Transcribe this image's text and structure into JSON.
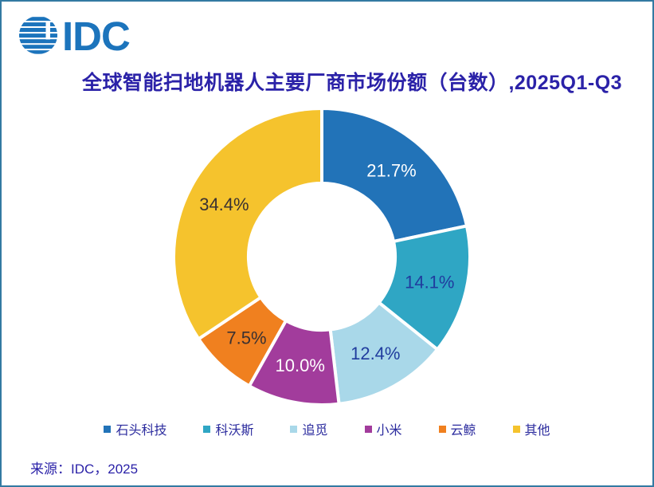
{
  "logo": {
    "text": "IDC",
    "color": "#1C74BC",
    "icon": "striped-globe-icon"
  },
  "title": {
    "text": "全球智能扫地机器人主要厂商市场份额（台数）,2025Q1-Q3",
    "color": "#2B22A8"
  },
  "chart_data": {
    "type": "pie",
    "subtype": "donut",
    "title": "全球智能扫地机器人主要厂商市场份额（台数）,2025Q1-Q3",
    "categories": [
      "石头科技",
      "科沃斯",
      "追觅",
      "小米",
      "云鲸",
      "其他"
    ],
    "values": [
      21.7,
      14.1,
      12.4,
      10.0,
      7.5,
      34.4
    ],
    "unit": "%",
    "colors": [
      "#2273B8",
      "#2FA6C4",
      "#A9D8E9",
      "#A23C9C",
      "#F0801F",
      "#F5C32D"
    ],
    "data_label_colors": [
      "#FFFFFF",
      "#203C9E",
      "#203C9E",
      "#FFFFFF",
      "#3A3132",
      "#3A3132"
    ],
    "start_angle_deg": 0,
    "direction": "clockwise",
    "inner_radius_ratio": 0.495,
    "slice_gap_color": "#FFFFFF",
    "data_label_font_px": 22,
    "legend_position": "bottom",
    "legend_text_color": "#2B2B9E"
  },
  "footer": {
    "source": "来源：IDC，2025",
    "color": "#2B22A8"
  },
  "frame": {
    "border_color": "#337AA2",
    "background": "#FFFFFF"
  }
}
